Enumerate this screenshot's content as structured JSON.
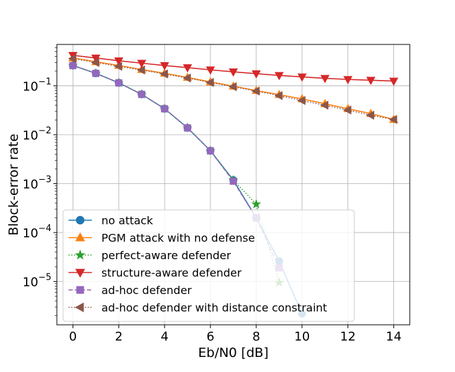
{
  "chart_data": {
    "type": "line",
    "title": "",
    "xlabel": "Eb/N0 [dB]",
    "ylabel": "Block-error rate",
    "xlim": [
      -0.7,
      14.7
    ],
    "ylim": [
      1.3e-06,
      0.7
    ],
    "yscale": "log",
    "grid": true,
    "legend_position": "lower-left",
    "x_ticks": [
      0,
      2,
      4,
      6,
      8,
      10,
      12,
      14
    ],
    "x_tick_labels": [
      "0",
      "2",
      "4",
      "6",
      "8",
      "10",
      "12",
      "14"
    ],
    "y_ticks": [
      1e-05,
      0.0001,
      0.001,
      0.01,
      0.1
    ],
    "y_tick_bases": [
      "10",
      "10",
      "10",
      "10",
      "10"
    ],
    "y_tick_exponents": [
      "−5",
      "−4",
      "−3",
      "−2",
      "−1"
    ],
    "series": [
      {
        "name": "no attack",
        "color": "#1f77b4",
        "marker": "circle",
        "linestyle": "solid",
        "x": [
          0,
          1,
          2,
          3,
          4,
          5,
          6,
          7,
          8,
          9,
          10
        ],
        "y": [
          0.26,
          0.18,
          0.115,
          0.067,
          0.034,
          0.0138,
          0.0047,
          0.00118,
          0.0002,
          2.6e-05,
          2.2e-06
        ]
      },
      {
        "name": "PGM attack with no defense",
        "color": "#ff7f0e",
        "marker": "triangle-up",
        "linestyle": "solid",
        "x": [
          0,
          1,
          2,
          3,
          4,
          5,
          6,
          7,
          8,
          9,
          10,
          11,
          12,
          13,
          14
        ],
        "y": [
          0.37,
          0.31,
          0.26,
          0.215,
          0.18,
          0.148,
          0.12,
          0.098,
          0.08,
          0.066,
          0.054,
          0.043,
          0.034,
          0.027,
          0.0205
        ]
      },
      {
        "name": "perfect-aware defender",
        "color": "#2ca02c",
        "marker": "star",
        "linestyle": "dotted",
        "x": [
          0,
          1,
          2,
          3,
          4,
          5,
          6,
          7,
          8,
          9
        ],
        "y": [
          0.26,
          0.18,
          0.115,
          0.067,
          0.034,
          0.0138,
          0.0047,
          0.00118,
          0.00038,
          9.5e-06
        ]
      },
      {
        "name": "structure-aware defender",
        "color": "#d62728",
        "marker": "triangle-down",
        "linestyle": "solid",
        "x": [
          0,
          1,
          2,
          3,
          4,
          5,
          6,
          7,
          8,
          9,
          10,
          11,
          12,
          13,
          14
        ],
        "y": [
          0.42,
          0.37,
          0.325,
          0.29,
          0.26,
          0.235,
          0.212,
          0.193,
          0.177,
          0.163,
          0.152,
          0.142,
          0.135,
          0.13,
          0.125
        ]
      },
      {
        "name": "ad-hoc defender",
        "color": "#9467bd",
        "marker": "square",
        "linestyle": "dashed",
        "x": [
          0,
          1,
          2,
          3,
          4,
          5,
          6,
          7,
          8,
          9
        ],
        "y": [
          0.26,
          0.18,
          0.115,
          0.067,
          0.034,
          0.0138,
          0.0047,
          0.00112,
          0.0002,
          1.9e-05
        ]
      },
      {
        "name": "ad-hoc defender with distance constraint",
        "color": "#8c564b",
        "marker": "triangle-left",
        "linestyle": "dotted",
        "x": [
          0,
          1,
          2,
          3,
          4,
          5,
          6,
          7,
          8,
          9,
          10,
          11,
          12,
          13,
          14
        ],
        "y": [
          0.36,
          0.3,
          0.25,
          0.21,
          0.175,
          0.144,
          0.117,
          0.096,
          0.078,
          0.063,
          0.05,
          0.04,
          0.032,
          0.025,
          0.0205
        ]
      }
    ]
  }
}
